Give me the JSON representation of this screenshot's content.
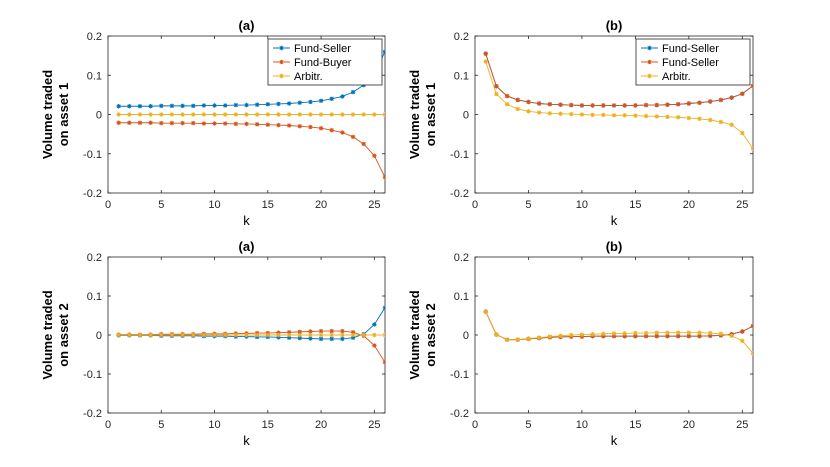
{
  "chart_data": [
    {
      "type": "line",
      "title": "(a)",
      "xlabel": "k",
      "ylabel": [
        "Volume traded",
        "on asset 1"
      ],
      "xlim": [
        0,
        26
      ],
      "ylim": [
        -0.2,
        0.2
      ],
      "xticks": [
        "0",
        "5",
        "10",
        "15",
        "20",
        "25"
      ],
      "yticks": [
        "-0.2",
        "-0.1",
        "0",
        "0.1",
        "0.2"
      ],
      "legend_position": "top-right",
      "x": [
        1,
        2,
        3,
        4,
        5,
        6,
        7,
        8,
        9,
        10,
        11,
        12,
        13,
        14,
        15,
        16,
        17,
        18,
        19,
        20,
        21,
        22,
        23,
        24,
        25,
        26
      ],
      "series": [
        {
          "name": "Fund-Seller",
          "color": "#0072BD",
          "values": [
            0.021,
            0.021,
            0.021,
            0.021,
            0.022,
            0.022,
            0.022,
            0.022,
            0.023,
            0.023,
            0.023,
            0.024,
            0.024,
            0.025,
            0.026,
            0.027,
            0.028,
            0.03,
            0.032,
            0.035,
            0.04,
            0.046,
            0.057,
            0.075,
            0.105,
            0.16
          ]
        },
        {
          "name": "Fund-Buyer",
          "color": "#D95319",
          "values": [
            -0.021,
            -0.021,
            -0.021,
            -0.021,
            -0.022,
            -0.022,
            -0.022,
            -0.022,
            -0.023,
            -0.023,
            -0.023,
            -0.024,
            -0.024,
            -0.025,
            -0.026,
            -0.027,
            -0.028,
            -0.03,
            -0.032,
            -0.035,
            -0.04,
            -0.046,
            -0.057,
            -0.075,
            -0.105,
            -0.16
          ]
        },
        {
          "name": "Arbitr.",
          "color": "#EDB120",
          "values": [
            0,
            0,
            0,
            0,
            0,
            0,
            0,
            0,
            0,
            0,
            0,
            0,
            0,
            0,
            0,
            0,
            0,
            0,
            0,
            0,
            0,
            0,
            0,
            0,
            0,
            0
          ]
        }
      ]
    },
    {
      "type": "line",
      "title": "(b)",
      "xlabel": "k",
      "ylabel": [
        "Volume traded",
        "on asset 1"
      ],
      "xlim": [
        0,
        26
      ],
      "ylim": [
        -0.2,
        0.2
      ],
      "xticks": [
        "0",
        "5",
        "10",
        "15",
        "20",
        "25"
      ],
      "yticks": [
        "-0.2",
        "-0.1",
        "0",
        "0.1",
        "0.2"
      ],
      "legend_position": "top-right",
      "x": [
        1,
        2,
        3,
        4,
        5,
        6,
        7,
        8,
        9,
        10,
        11,
        12,
        13,
        14,
        15,
        16,
        17,
        18,
        19,
        20,
        21,
        22,
        23,
        24,
        25,
        26
      ],
      "series": [
        {
          "name": "Fund-Seller",
          "color": "#0072BD",
          "values": [
            0.155,
            0.072,
            0.047,
            0.037,
            0.032,
            0.028,
            0.026,
            0.025,
            0.024,
            0.023,
            0.023,
            0.023,
            0.023,
            0.023,
            0.023,
            0.024,
            0.024,
            0.025,
            0.026,
            0.028,
            0.03,
            0.033,
            0.037,
            0.043,
            0.053,
            0.073
          ]
        },
        {
          "name": "Fund-Seller",
          "color": "#D95319",
          "values": [
            0.155,
            0.072,
            0.047,
            0.037,
            0.032,
            0.028,
            0.026,
            0.025,
            0.024,
            0.023,
            0.023,
            0.023,
            0.023,
            0.023,
            0.023,
            0.024,
            0.024,
            0.025,
            0.026,
            0.028,
            0.03,
            0.033,
            0.037,
            0.043,
            0.053,
            0.073
          ]
        },
        {
          "name": "Arbitr.",
          "color": "#EDB120",
          "values": [
            0.135,
            0.052,
            0.026,
            0.014,
            0.008,
            0.005,
            0.003,
            0.002,
            0.001,
            0.0,
            -0.001,
            -0.001,
            -0.002,
            -0.002,
            -0.003,
            -0.004,
            -0.005,
            -0.006,
            -0.007,
            -0.009,
            -0.011,
            -0.014,
            -0.019,
            -0.026,
            -0.047,
            -0.087
          ]
        }
      ]
    },
    {
      "type": "line",
      "title": "(a)",
      "xlabel": "k",
      "ylabel": [
        "Volume traded",
        "on asset 2"
      ],
      "xlim": [
        0,
        26
      ],
      "ylim": [
        -0.2,
        0.2
      ],
      "xticks": [
        "0",
        "5",
        "10",
        "15",
        "20",
        "25"
      ],
      "yticks": [
        "-0.2",
        "-0.1",
        "0",
        "0.1",
        "0.2"
      ],
      "x": [
        1,
        2,
        3,
        4,
        5,
        6,
        7,
        8,
        9,
        10,
        11,
        12,
        13,
        14,
        15,
        16,
        17,
        18,
        19,
        20,
        21,
        22,
        23,
        24,
        25,
        26
      ],
      "series": [
        {
          "name": "Fund-Seller",
          "color": "#0072BD",
          "values": [
            -0.001,
            -0.001,
            -0.001,
            -0.001,
            -0.002,
            -0.002,
            -0.002,
            -0.002,
            -0.003,
            -0.003,
            -0.003,
            -0.004,
            -0.004,
            -0.005,
            -0.005,
            -0.006,
            -0.007,
            -0.008,
            -0.009,
            -0.01,
            -0.01,
            -0.01,
            -0.007,
            0.002,
            0.027,
            0.07
          ]
        },
        {
          "name": "Fund-Buyer",
          "color": "#D95319",
          "values": [
            0.001,
            0.001,
            0.001,
            0.001,
            0.002,
            0.002,
            0.002,
            0.002,
            0.003,
            0.003,
            0.003,
            0.004,
            0.004,
            0.005,
            0.005,
            0.006,
            0.007,
            0.008,
            0.009,
            0.01,
            0.01,
            0.01,
            0.007,
            -0.002,
            -0.027,
            -0.07
          ]
        },
        {
          "name": "Arbitr.",
          "color": "#EDB120",
          "values": [
            0,
            0,
            0,
            0,
            0,
            0,
            0,
            0,
            0,
            0,
            0,
            0,
            0,
            0,
            0,
            0,
            0,
            0,
            0,
            0,
            0,
            0,
            0,
            0,
            0,
            0
          ]
        }
      ]
    },
    {
      "type": "line",
      "title": "(b)",
      "xlabel": "k",
      "ylabel": [
        "Volume traded",
        "on asset 2"
      ],
      "xlim": [
        0,
        26
      ],
      "ylim": [
        -0.2,
        0.2
      ],
      "xticks": [
        "0",
        "5",
        "10",
        "15",
        "20",
        "25"
      ],
      "yticks": [
        "-0.2",
        "-0.1",
        "0",
        "0.1",
        "0.2"
      ],
      "x": [
        1,
        2,
        3,
        4,
        5,
        6,
        7,
        8,
        9,
        10,
        11,
        12,
        13,
        14,
        15,
        16,
        17,
        18,
        19,
        20,
        21,
        22,
        23,
        24,
        25,
        26
      ],
      "series": [
        {
          "name": "Fund-Seller",
          "color": "#0072BD",
          "values": [
            0.06,
            0.001,
            -0.012,
            -0.012,
            -0.01,
            -0.008,
            -0.006,
            -0.005,
            -0.004,
            -0.004,
            -0.003,
            -0.003,
            -0.003,
            -0.003,
            -0.003,
            -0.003,
            -0.003,
            -0.003,
            -0.003,
            -0.003,
            -0.003,
            -0.002,
            -0.001,
            0.002,
            0.009,
            0.023
          ]
        },
        {
          "name": "Fund-Seller",
          "color": "#D95319",
          "values": [
            0.06,
            0.001,
            -0.012,
            -0.012,
            -0.01,
            -0.008,
            -0.006,
            -0.005,
            -0.004,
            -0.004,
            -0.003,
            -0.003,
            -0.003,
            -0.003,
            -0.003,
            -0.003,
            -0.003,
            -0.003,
            -0.003,
            -0.003,
            -0.003,
            -0.002,
            -0.001,
            0.002,
            0.009,
            0.023
          ]
        },
        {
          "name": "Arbitr.",
          "color": "#EDB120",
          "values": [
            0.06,
            0.001,
            -0.012,
            -0.012,
            -0.009,
            -0.007,
            -0.004,
            -0.002,
            0.0,
            0.001,
            0.002,
            0.003,
            0.004,
            0.004,
            0.005,
            0.005,
            0.006,
            0.006,
            0.006,
            0.006,
            0.006,
            0.005,
            0.003,
            -0.002,
            -0.015,
            -0.047
          ]
        }
      ]
    }
  ]
}
